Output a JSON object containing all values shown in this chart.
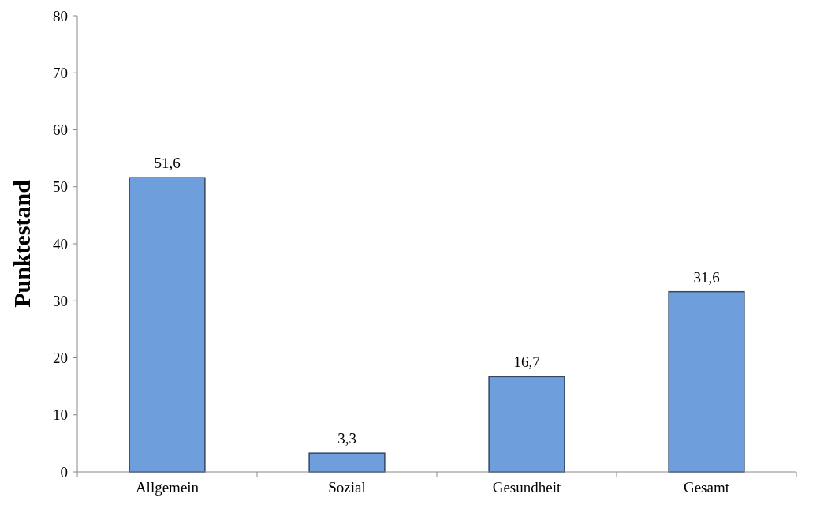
{
  "chart_data": {
    "type": "bar",
    "ylabel": "Punktestand",
    "categories": [
      "Allgemein",
      "Sozial",
      "Gesundheit",
      "Gesamt"
    ],
    "values": [
      51.6,
      3.3,
      16.7,
      31.6
    ],
    "value_labels": [
      "51,6",
      "3,3",
      "16,7",
      "31,6"
    ],
    "color": "#6f9edc",
    "ylim": [
      0,
      80
    ],
    "yticks": [
      0,
      10,
      20,
      30,
      40,
      50,
      60,
      70,
      80
    ],
    "grid": false
  }
}
